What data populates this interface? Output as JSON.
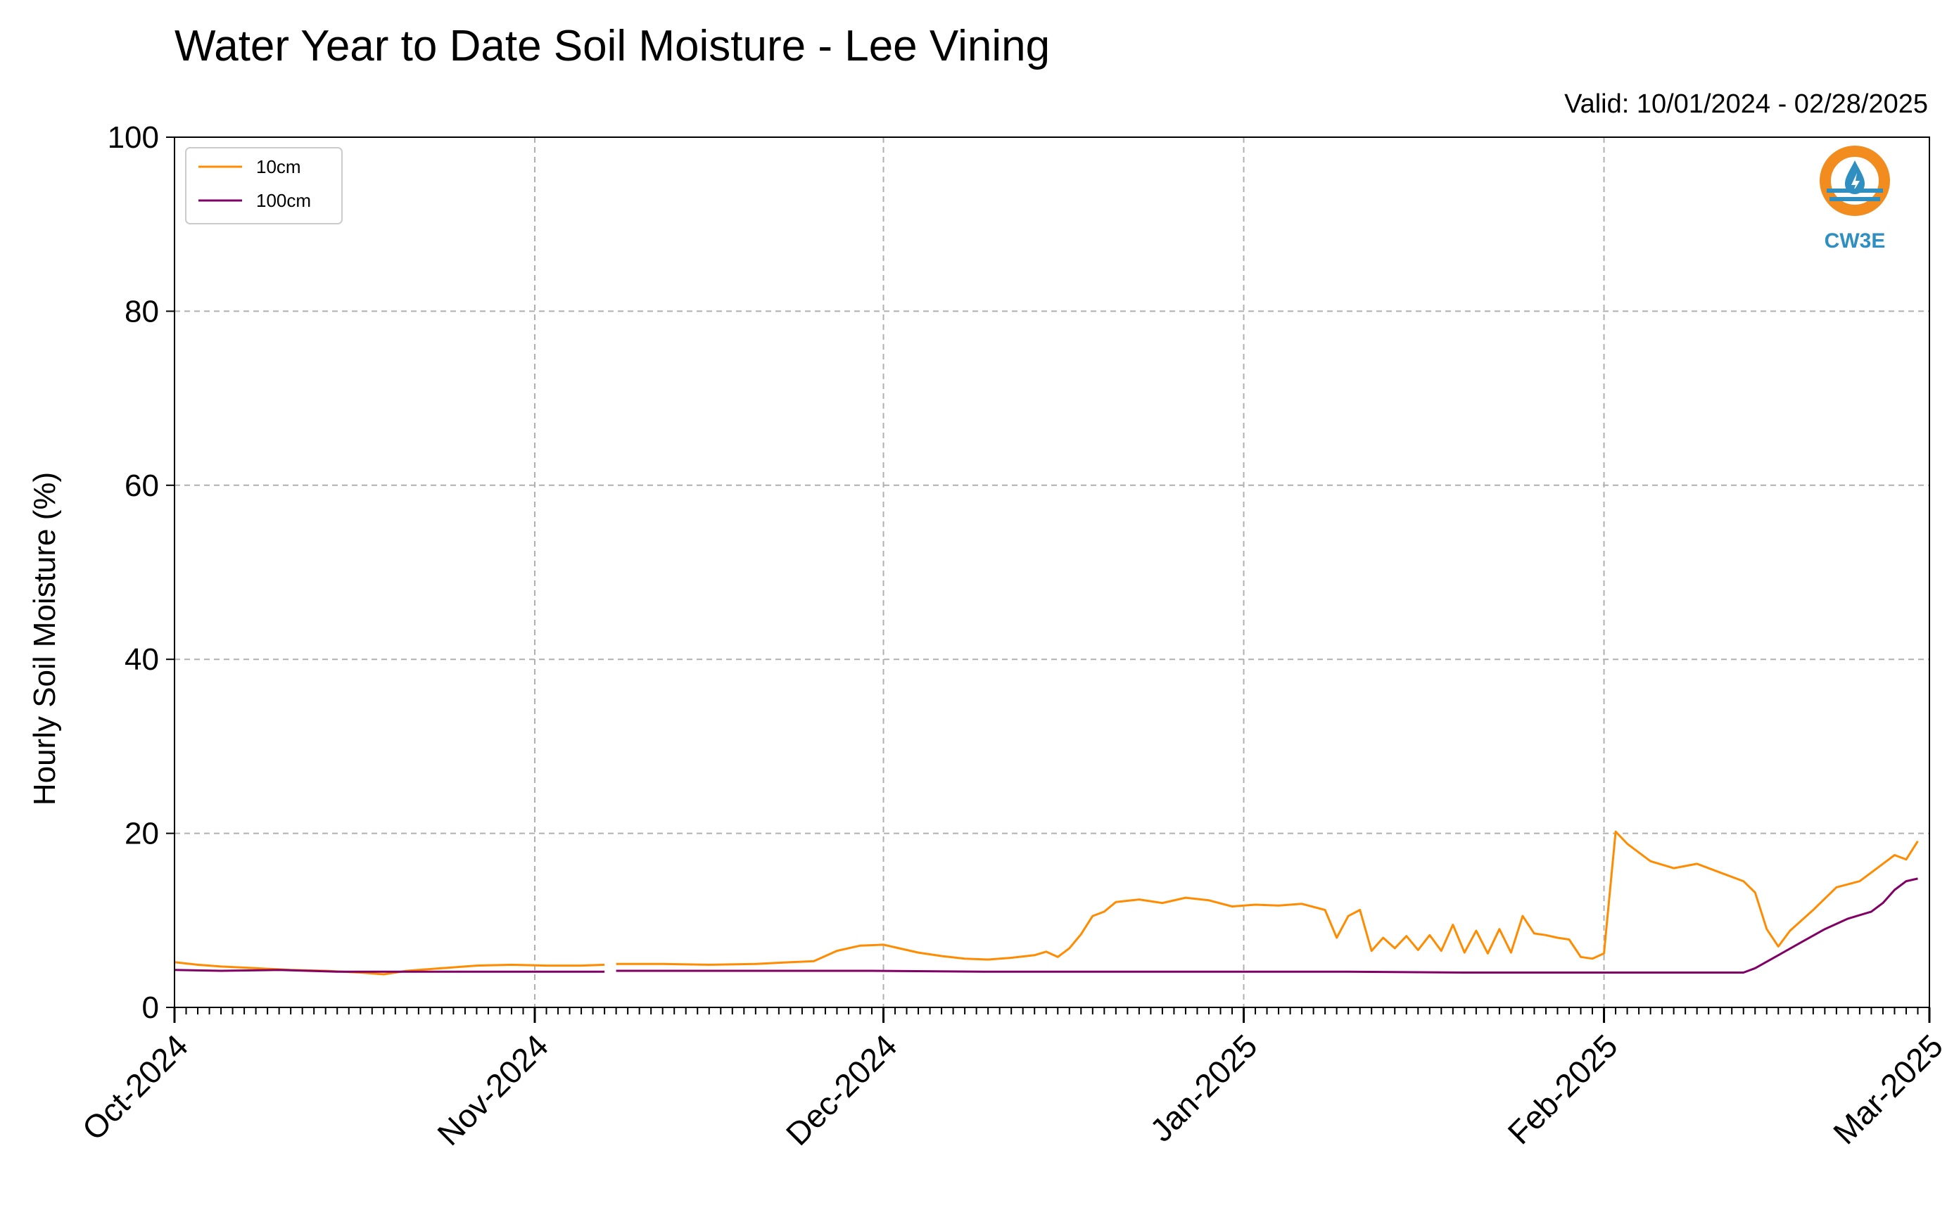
{
  "chart_data": {
    "type": "line",
    "title": "Water Year to Date Soil Moisture - Lee Vining",
    "subtitle": "Valid: 10/01/2024 - 02/28/2025",
    "xlabel": "",
    "ylabel": "Hourly Soil Moisture (%)",
    "ylim": [
      0,
      100
    ],
    "yticks": [
      0,
      20,
      40,
      60,
      80,
      100
    ],
    "xlim": [
      "2024-10-01",
      "2025-03-01"
    ],
    "xticks": [
      "2024-10-01",
      "2024-11-01",
      "2024-12-01",
      "2025-01-01",
      "2025-02-01",
      "2025-03-01"
    ],
    "xtick_labels": [
      "Oct-2024",
      "Nov-2024",
      "Dec-2024",
      "Jan-2025",
      "Feb-2025",
      "Mar-2025"
    ],
    "grid": true,
    "legend_position": "top-left",
    "series": [
      {
        "name": "10cm",
        "color": "#ff8c00",
        "points": [
          [
            "2024-10-01",
            5.2
          ],
          [
            "2024-10-03",
            4.9
          ],
          [
            "2024-10-05",
            4.7
          ],
          [
            "2024-10-08",
            4.5
          ],
          [
            "2024-10-11",
            4.3
          ],
          [
            "2024-10-14",
            4.2
          ],
          [
            "2024-10-17",
            4.0
          ],
          [
            "2024-10-19",
            3.8
          ],
          [
            "2024-10-21",
            4.2
          ],
          [
            "2024-10-24",
            4.5
          ],
          [
            "2024-10-27",
            4.8
          ],
          [
            "2024-10-30",
            4.9
          ],
          [
            "2024-11-02",
            4.8
          ],
          [
            "2024-11-05",
            4.8
          ],
          [
            "2024-11-07",
            4.9
          ],
          null,
          [
            "2024-11-08",
            5.0
          ],
          [
            "2024-11-12",
            5.0
          ],
          [
            "2024-11-16",
            4.9
          ],
          [
            "2024-11-20",
            5.0
          ],
          [
            "2024-11-23",
            5.2
          ],
          [
            "2024-11-25",
            5.3
          ],
          [
            "2024-11-27",
            6.5
          ],
          [
            "2024-11-29",
            7.1
          ],
          [
            "2024-12-01",
            7.2
          ],
          [
            "2024-12-02",
            6.9
          ],
          [
            "2024-12-04",
            6.3
          ],
          [
            "2024-12-06",
            5.9
          ],
          [
            "2024-12-08",
            5.6
          ],
          [
            "2024-12-10",
            5.5
          ],
          [
            "2024-12-12",
            5.7
          ],
          [
            "2024-12-14",
            6.0
          ],
          [
            "2024-12-15",
            6.4
          ],
          [
            "2024-12-16",
            5.8
          ],
          [
            "2024-12-17",
            6.8
          ],
          [
            "2024-12-18",
            8.4
          ],
          [
            "2024-12-19",
            10.5
          ],
          [
            "2024-12-20",
            11.0
          ],
          [
            "2024-12-21",
            12.1
          ],
          [
            "2024-12-23",
            12.4
          ],
          [
            "2024-12-25",
            12.0
          ],
          [
            "2024-12-27",
            12.6
          ],
          [
            "2024-12-29",
            12.3
          ],
          [
            "2024-12-31",
            11.6
          ],
          [
            "2025-01-02",
            11.8
          ],
          [
            "2025-01-04",
            11.7
          ],
          [
            "2025-01-06",
            11.9
          ],
          [
            "2025-01-08",
            11.2
          ],
          [
            "2025-01-09",
            8.0
          ],
          [
            "2025-01-10",
            10.5
          ],
          [
            "2025-01-11",
            11.2
          ],
          [
            "2025-01-12",
            6.5
          ],
          [
            "2025-01-13",
            8.0
          ],
          [
            "2025-01-14",
            6.8
          ],
          [
            "2025-01-15",
            8.2
          ],
          [
            "2025-01-16",
            6.6
          ],
          [
            "2025-01-17",
            8.3
          ],
          [
            "2025-01-18",
            6.5
          ],
          [
            "2025-01-19",
            9.5
          ],
          [
            "2025-01-20",
            6.3
          ],
          [
            "2025-01-21",
            8.8
          ],
          [
            "2025-01-22",
            6.2
          ],
          [
            "2025-01-23",
            9.0
          ],
          [
            "2025-01-24",
            6.3
          ],
          [
            "2025-01-25",
            10.5
          ],
          [
            "2025-01-26",
            8.5
          ],
          [
            "2025-01-27",
            8.3
          ],
          [
            "2025-01-28",
            8.0
          ],
          [
            "2025-01-29",
            7.8
          ],
          [
            "2025-01-30",
            5.8
          ],
          [
            "2025-01-31",
            5.6
          ],
          [
            "2025-02-01",
            6.2
          ],
          [
            "2025-02-02",
            20.2
          ],
          [
            "2025-02-03",
            18.8
          ],
          [
            "2025-02-05",
            16.8
          ],
          [
            "2025-02-07",
            16.0
          ],
          [
            "2025-02-09",
            16.5
          ],
          [
            "2025-02-11",
            15.5
          ],
          [
            "2025-02-13",
            14.5
          ],
          [
            "2025-02-14",
            13.2
          ],
          [
            "2025-02-15",
            9.0
          ],
          [
            "2025-02-16",
            7.0
          ],
          [
            "2025-02-17",
            8.8
          ],
          [
            "2025-02-19",
            11.2
          ],
          [
            "2025-02-21",
            13.8
          ],
          [
            "2025-02-23",
            14.5
          ],
          [
            "2025-02-24",
            15.5
          ],
          [
            "2025-02-25",
            16.5
          ],
          [
            "2025-02-26",
            17.5
          ],
          [
            "2025-02-27",
            17.0
          ],
          [
            "2025-02-28",
            19.1
          ]
        ]
      },
      {
        "name": "100cm",
        "color": "#800066",
        "points": [
          [
            "2024-10-01",
            4.3
          ],
          [
            "2024-10-05",
            4.2
          ],
          [
            "2024-10-10",
            4.3
          ],
          [
            "2024-10-15",
            4.1
          ],
          [
            "2024-10-20",
            4.1
          ],
          [
            "2024-10-25",
            4.1
          ],
          [
            "2024-10-30",
            4.1
          ],
          [
            "2024-11-05",
            4.1
          ],
          [
            "2024-11-07",
            4.1
          ],
          null,
          [
            "2024-11-08",
            4.2
          ],
          [
            "2024-11-15",
            4.2
          ],
          [
            "2024-11-22",
            4.2
          ],
          [
            "2024-11-30",
            4.2
          ],
          [
            "2024-12-10",
            4.1
          ],
          [
            "2024-12-20",
            4.1
          ],
          [
            "2024-12-31",
            4.1
          ],
          [
            "2025-01-10",
            4.1
          ],
          [
            "2025-01-20",
            4.0
          ],
          [
            "2025-01-31",
            4.0
          ],
          [
            "2025-02-05",
            4.0
          ],
          [
            "2025-02-10",
            4.0
          ],
          [
            "2025-02-13",
            4.0
          ],
          [
            "2025-02-14",
            4.5
          ],
          [
            "2025-02-16",
            6.0
          ],
          [
            "2025-02-18",
            7.5
          ],
          [
            "2025-02-20",
            9.0
          ],
          [
            "2025-02-22",
            10.2
          ],
          [
            "2025-02-24",
            11.0
          ],
          [
            "2025-02-25",
            12.0
          ],
          [
            "2025-02-26",
            13.5
          ],
          [
            "2025-02-27",
            14.5
          ],
          [
            "2025-02-28",
            14.8
          ]
        ]
      }
    ]
  },
  "logo": {
    "text": "CW3E",
    "ring_color": "#f28c1e",
    "water_color": "#2e8fc0"
  }
}
